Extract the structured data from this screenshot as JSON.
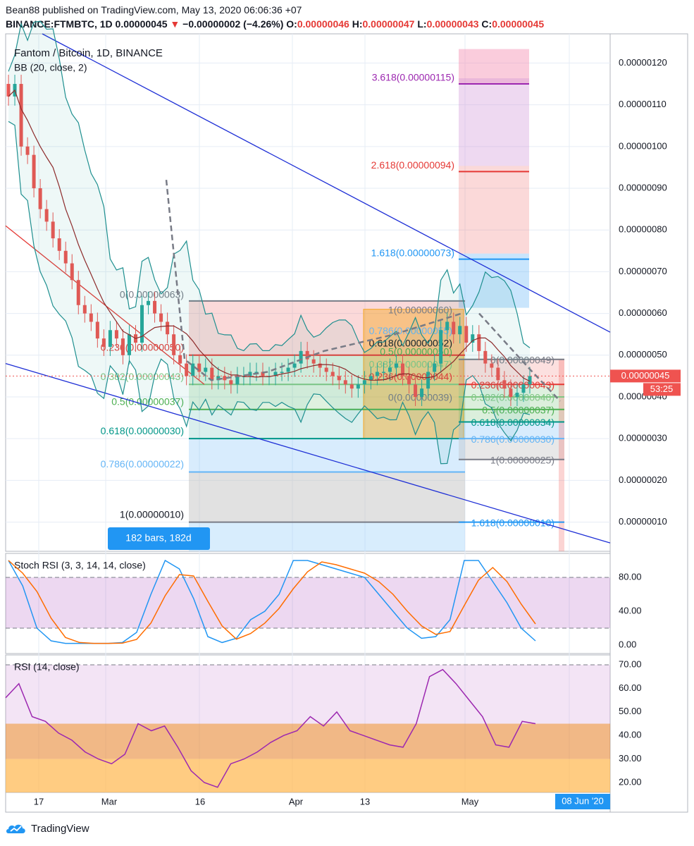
{
  "header": {
    "line1": "Bean88 published on TradingView.com, May 13, 2020 06:06:36 +07",
    "symbol": "BINANCE:FTMBTC, 1D",
    "price": "0.00000045",
    "change": "−0.00000002 (−4.26%)",
    "o_label": "O:",
    "o_value": "0.00000046",
    "h_label": "H:",
    "h_value": "0.00000047",
    "l_label": "L:",
    "l_value": "0.00000043",
    "c_label": "C:",
    "c_value": "0.00000045"
  },
  "legend": {
    "pair": "Fantom / Bitcoin, 1D, BINANCE",
    "bb": "BB (20, close, 2)",
    "stoch": "Stoch RSI (3, 3, 14, 14, close)",
    "rsi": "RSI (14, close)"
  },
  "price_axis": {
    "ticks": [
      "0.00000120",
      "0.00000110",
      "0.00000100",
      "0.00000090",
      "0.00000080",
      "0.00000070",
      "0.00000060",
      "0.00000050",
      "0.00000040",
      "0.00000030",
      "0.00000020",
      "0.00000010"
    ],
    "current_price": "0.00000045",
    "countdown": "53:25"
  },
  "stoch_axis": [
    "80.00",
    "40.00",
    "0.00"
  ],
  "rsi_axis": [
    "70.00",
    "60.00",
    "50.00",
    "40.00",
    "30.00",
    "20.00"
  ],
  "time_axis": {
    "labels": [
      "17",
      "Mar",
      "16",
      "Apr",
      "13",
      "May"
    ],
    "highlight": "08 Jun '20"
  },
  "range_badge": "182 bars, 182d",
  "fib_left": [
    "0(0.00000063)",
    "0.236(0.00000050)",
    "0.382(0.00000043)",
    "0.5(0.00000037)",
    "0.618(0.00000030)",
    "0.786(0.00000022)",
    "1(0.00000010)"
  ],
  "fib_mid": [
    "1(0.00000060)",
    "0.786(0.00000055)",
    "0.618(0.00000052)",
    "0.5(0.00000050)",
    "0.382(0.00000047)",
    "0.236(0.00000044)",
    "0(0.00000039)"
  ],
  "fib_ext": [
    "3.618(0.00000115)",
    "2.618(0.00000094)",
    "1.618(0.00000073)"
  ],
  "fib_right": [
    "0(0.00000049)",
    "0.236(0.00000043)",
    "0.382(0.00000040)",
    "0.5(0.00000037)",
    "0.618(0.00000034)",
    "0.786(0.00000030)",
    "1(0.00000025)",
    "1.618(0.00000010)"
  ],
  "footer": {
    "brand": "TradingView"
  },
  "colors": {
    "up": "#26a69a",
    "down": "#ef5350",
    "bb": "#1e8f8f",
    "channel": "#1e2fd6",
    "stoch_k": "#2196f3",
    "stoch_d": "#ff6d00",
    "rsi": "#9c27b0",
    "axis_badge": "#2196f3"
  },
  "chart_data": {
    "type": "candlestick",
    "ylim": [
      3e-08,
      1.27e-06
    ],
    "closes": [
      112,
      115,
      100,
      98,
      90,
      85,
      82,
      78,
      75,
      72,
      68,
      62,
      60,
      58,
      54,
      52,
      56,
      54,
      50,
      55,
      53,
      62,
      63,
      60,
      58,
      55,
      50,
      48,
      45,
      48,
      46,
      47,
      44,
      45,
      44,
      43,
      45,
      45,
      46,
      46,
      45,
      45,
      46,
      46,
      47,
      48,
      51,
      49,
      48,
      47,
      46,
      45,
      44,
      43,
      42,
      43,
      44,
      45,
      46,
      46,
      47,
      48,
      45,
      43,
      40,
      42,
      46,
      48,
      56,
      58,
      55,
      57,
      53,
      55,
      51,
      48,
      47,
      44,
      42,
      40,
      41,
      43,
      45
    ],
    "stoch_rsi_k": [
      100,
      70,
      20,
      5,
      2,
      2,
      2,
      2,
      3,
      15,
      60,
      100,
      90,
      55,
      10,
      3,
      8,
      30,
      40,
      60,
      100,
      100,
      95,
      90,
      85,
      80,
      60,
      40,
      20,
      8,
      10,
      30,
      100,
      100,
      75,
      50,
      20,
      5
    ],
    "rsi": [
      56,
      62,
      48,
      46,
      41,
      38,
      33,
      30,
      28,
      32,
      45,
      42,
      44,
      35,
      25,
      20,
      18,
      28,
      30,
      33,
      37,
      40,
      42,
      48,
      44,
      50,
      42,
      40,
      38,
      36,
      35,
      45,
      65,
      68,
      62,
      55,
      48,
      36,
      35,
      46,
      45
    ]
  }
}
